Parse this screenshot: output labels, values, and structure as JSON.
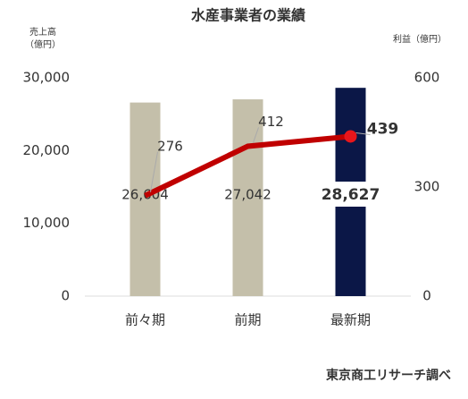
{
  "chart_data": {
    "type": "bar",
    "title": "水産事業者の業績",
    "y_label": [
      "売上高",
      "（億円）"
    ],
    "y2_label": "利益（億円）",
    "source": "東京商工リサーチ調べ",
    "categories": [
      "前々期",
      "前期",
      "最新期"
    ],
    "series": [
      {
        "type": "bar",
        "colors": [
          "#c4bfaa",
          "#c4bfaa",
          "#0b1747"
        ],
        "values": [
          26604,
          27042,
          28627
        ],
        "value_labels": [
          "26,604",
          "27,042",
          "28,627"
        ]
      },
      {
        "type": "line",
        "axis": "y2",
        "color": "#c00000",
        "values": [
          276,
          412,
          439
        ]
      }
    ],
    "ylim": [
      0,
      30000
    ],
    "yticks": [
      0,
      {
        "value": 10000,
        "label": "10,000"
      },
      {
        "value": 20000,
        "label": "20,000"
      },
      {
        "value": 30000,
        "label": "30,000"
      }
    ],
    "y2lim": [
      0,
      600
    ],
    "y2ticks": [
      0,
      300,
      600
    ],
    "grid": false
  }
}
